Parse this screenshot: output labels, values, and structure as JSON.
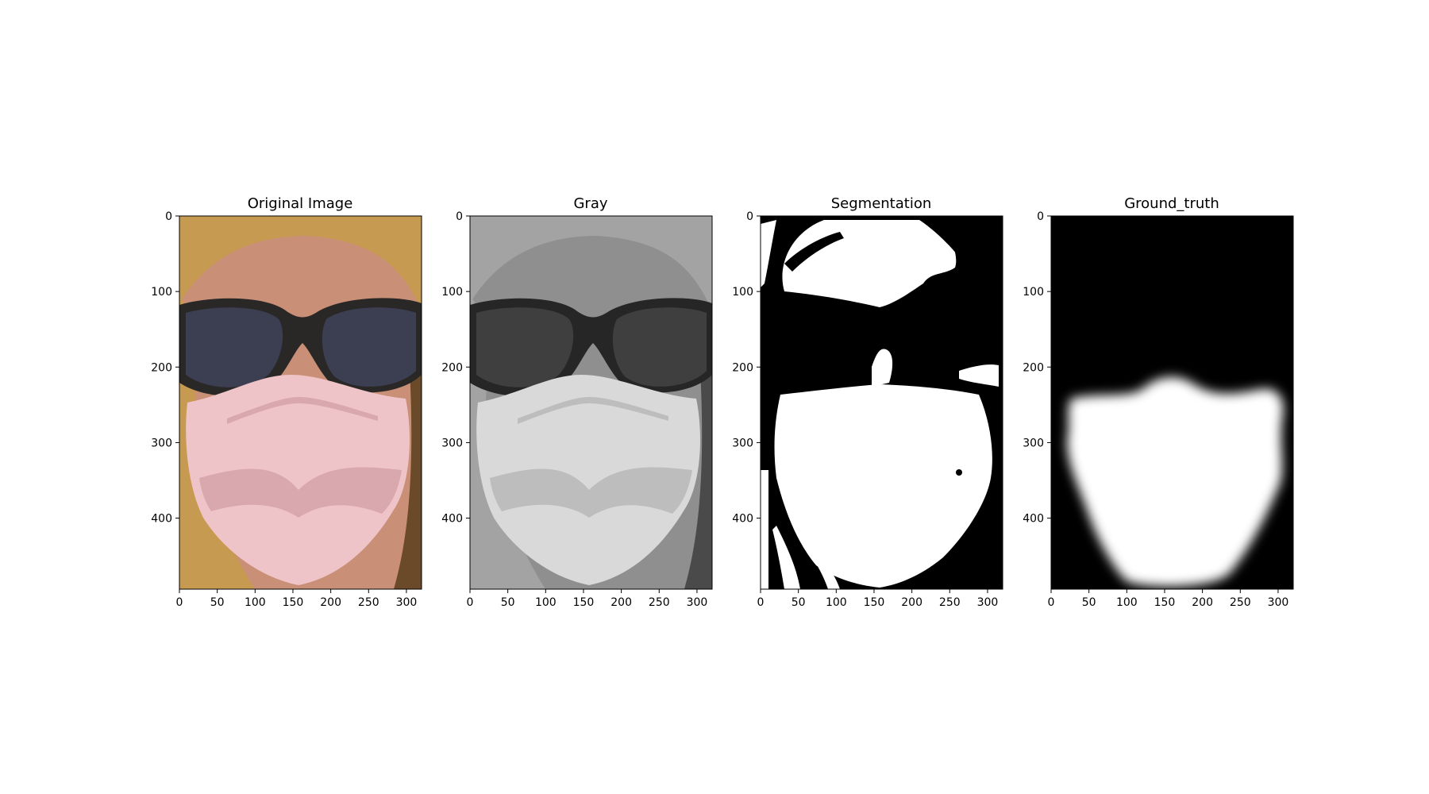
{
  "figure": {
    "panels": [
      {
        "title": "Original Image",
        "kind": "color-photo",
        "x_ticks": [
          0,
          50,
          100,
          150,
          200,
          250,
          300
        ],
        "y_ticks": [
          0,
          100,
          200,
          300,
          400
        ],
        "x_range": [
          0,
          320
        ],
        "y_range": [
          0,
          494
        ],
        "colors": {
          "skin": "#c98f77",
          "hair": "#c79a52",
          "hair_dark": "#6b4a2a",
          "lens": "#3c3f52",
          "frame": "#2a2727",
          "mask": "#efc4c8",
          "mask_shadow": "#d9a7ae"
        }
      },
      {
        "title": "Gray",
        "kind": "grayscale-photo",
        "x_ticks": [
          0,
          50,
          100,
          150,
          200,
          250,
          300
        ],
        "y_ticks": [
          0,
          100,
          200,
          300,
          400
        ],
        "x_range": [
          0,
          320
        ],
        "y_range": [
          0,
          494
        ],
        "colors": {
          "skin": "#8f8f8f",
          "hair": "#a3a3a3",
          "hair_dark": "#4a4a4a",
          "lens": "#3f3f3f",
          "frame": "#262626",
          "mask": "#d9d9d9",
          "mask_shadow": "#bdbdbd"
        }
      },
      {
        "title": "Segmentation",
        "kind": "binary-mask",
        "x_ticks": [
          0,
          50,
          100,
          150,
          200,
          250,
          300
        ],
        "y_ticks": [
          0,
          100,
          200,
          300,
          400
        ],
        "x_range": [
          0,
          320
        ],
        "y_range": [
          0,
          494
        ],
        "colors": {
          "foreground": "#ffffff",
          "background": "#000000"
        }
      },
      {
        "title": "Ground_truth",
        "kind": "soft-mask",
        "x_ticks": [
          0,
          50,
          100,
          150,
          200,
          250,
          300
        ],
        "y_ticks": [
          0,
          100,
          200,
          300,
          400
        ],
        "x_range": [
          0,
          320
        ],
        "y_range": [
          0,
          494
        ],
        "colors": {
          "foreground": "#ffffff",
          "background": "#000000"
        }
      }
    ]
  }
}
